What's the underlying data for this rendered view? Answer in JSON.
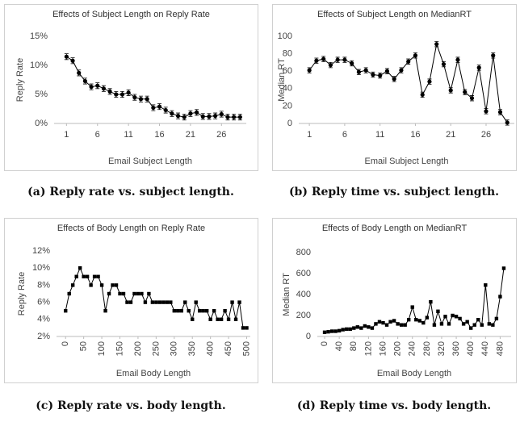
{
  "chart_data": [
    {
      "type": "line",
      "title": "Effects of Subject Length on Reply Rate",
      "xlabel": "Email Subject Length",
      "ylabel": "Reply Rate",
      "caption": "(a) Reply rate vs. subject length.",
      "x": [
        1,
        2,
        3,
        4,
        5,
        6,
        7,
        8,
        9,
        10,
        11,
        12,
        13,
        14,
        15,
        16,
        17,
        18,
        19,
        20,
        21,
        22,
        23,
        24,
        25,
        26,
        27,
        28,
        29
      ],
      "values": [
        11.5,
        10.8,
        8.7,
        7.3,
        6.3,
        6.5,
        6.0,
        5.5,
        5.0,
        5.0,
        5.3,
        4.5,
        4.2,
        4.2,
        2.7,
        2.9,
        2.3,
        1.7,
        1.3,
        1.1,
        1.7,
        1.9,
        1.2,
        1.2,
        1.3,
        1.6,
        1.1,
        1.1,
        1.1
      ],
      "errors": [
        0.5,
        0.5,
        0.5,
        0.5,
        0.5,
        0.5,
        0.5,
        0.5,
        0.5,
        0.5,
        0.5,
        0.5,
        0.5,
        0.5,
        0.5,
        0.5,
        0.5,
        0.5,
        0.5,
        0.5,
        0.5,
        0.5,
        0.5,
        0.5,
        0.5,
        0.5,
        0.5,
        0.5,
        0.5
      ],
      "color": "#000000",
      "marker": "circle",
      "xlim": [
        -1,
        30
      ],
      "xticks": [
        1,
        6,
        11,
        16,
        21,
        26
      ],
      "ylim": [
        0,
        15
      ],
      "yticks": [
        {
          "value": 0,
          "label": "0%"
        },
        {
          "value": 5,
          "label": "5%"
        },
        {
          "value": 10,
          "label": "10%"
        },
        {
          "value": 15,
          "label": "15%"
        }
      ],
      "grid": false
    },
    {
      "type": "line",
      "title": "Effects of Subject Length on MedianRT",
      "xlabel": "Email Subject Length",
      "ylabel": "Median RT",
      "caption": "(b) Reply time vs. subject length.",
      "x": [
        1,
        2,
        3,
        4,
        5,
        6,
        7,
        8,
        9,
        10,
        11,
        12,
        13,
        14,
        15,
        16,
        17,
        18,
        19,
        20,
        21,
        22,
        23,
        24,
        25,
        26,
        27,
        28,
        29
      ],
      "values": [
        61,
        72,
        74,
        67,
        73,
        73,
        69,
        59,
        61,
        56,
        55,
        60,
        51,
        61,
        71,
        78,
        33,
        48,
        91,
        68,
        38,
        73,
        36,
        29,
        64,
        14,
        78,
        13,
        1
      ],
      "errors": [
        3,
        3,
        3,
        3,
        3,
        3,
        3,
        3,
        3,
        3,
        3,
        3,
        3,
        3,
        3,
        3,
        3,
        3,
        3,
        3,
        3,
        3,
        3,
        3,
        3,
        3,
        3,
        3,
        3
      ],
      "color": "#000000",
      "marker": "circle",
      "xlim": [
        -0.5,
        30
      ],
      "xticks": [
        1,
        6,
        11,
        16,
        21,
        26
      ],
      "ylim": [
        0,
        100
      ],
      "yticks": [
        0,
        20,
        40,
        60,
        80,
        100
      ],
      "grid": false
    },
    {
      "type": "line",
      "title": "Effects of Body Length on Reply Rate",
      "xlabel": "Email Body Length",
      "ylabel": "Reply Rate",
      "caption": "(c) Reply rate vs. body length.",
      "x": [
        0,
        10,
        20,
        30,
        40,
        50,
        60,
        70,
        80,
        90,
        100,
        110,
        120,
        130,
        140,
        150,
        160,
        170,
        180,
        190,
        200,
        210,
        220,
        230,
        240,
        250,
        260,
        270,
        280,
        290,
        300,
        310,
        320,
        330,
        340,
        350,
        360,
        370,
        380,
        390,
        400,
        410,
        420,
        430,
        440,
        450,
        460,
        470,
        480,
        490,
        500
      ],
      "values": [
        5,
        7,
        8,
        9,
        10,
        9,
        9,
        8,
        9,
        9,
        8,
        5,
        7,
        8,
        8,
        7,
        7,
        6,
        6,
        7,
        7,
        7,
        6,
        7,
        6,
        6,
        6,
        6,
        6,
        6,
        5,
        5,
        5,
        6,
        5,
        4,
        6,
        5,
        5,
        5,
        4,
        5,
        4,
        4,
        5,
        4,
        6,
        4,
        6,
        3,
        3
      ],
      "color": "#000000",
      "marker": "square",
      "xlim": [
        -25,
        510
      ],
      "xticks": [
        0,
        50,
        100,
        150,
        200,
        250,
        300,
        350,
        400,
        450,
        500
      ],
      "ylim": [
        2,
        12
      ],
      "yticks": [
        {
          "value": 2,
          "label": "2%"
        },
        {
          "value": 4,
          "label": "4%"
        },
        {
          "value": 6,
          "label": "6%"
        },
        {
          "value": 8,
          "label": "8%"
        },
        {
          "value": 10,
          "label": "10%"
        },
        {
          "value": 12,
          "label": "12%"
        }
      ],
      "grid": false
    },
    {
      "type": "line",
      "title": "Effects of Body Length on MedianRT",
      "xlabel": "Email Body Length",
      "ylabel": "Median RT",
      "caption": "(d) Reply time vs. body length.",
      "x": [
        0,
        10,
        20,
        30,
        40,
        50,
        60,
        70,
        80,
        90,
        100,
        110,
        120,
        130,
        140,
        150,
        160,
        170,
        180,
        190,
        200,
        210,
        220,
        230,
        240,
        250,
        260,
        270,
        280,
        290,
        300,
        310,
        320,
        330,
        340,
        350,
        360,
        370,
        380,
        390,
        400,
        410,
        420,
        430,
        440,
        450,
        460,
        470,
        480,
        490
      ],
      "values": [
        40,
        45,
        50,
        50,
        55,
        65,
        70,
        70,
        80,
        90,
        80,
        100,
        90,
        80,
        120,
        140,
        130,
        110,
        140,
        150,
        120,
        110,
        110,
        160,
        280,
        160,
        150,
        130,
        180,
        330,
        110,
        240,
        120,
        190,
        120,
        200,
        190,
        170,
        120,
        140,
        80,
        110,
        160,
        110,
        490,
        120,
        110,
        170,
        380,
        650
      ],
      "color": "#000000",
      "marker": "square",
      "xlim": [
        -20,
        510
      ],
      "xticks": [
        0,
        40,
        80,
        120,
        160,
        200,
        240,
        280,
        320,
        360,
        400,
        440,
        480
      ],
      "ylim": [
        0,
        800
      ],
      "yticks": [
        0,
        200,
        400,
        600,
        800
      ],
      "grid": false
    }
  ]
}
